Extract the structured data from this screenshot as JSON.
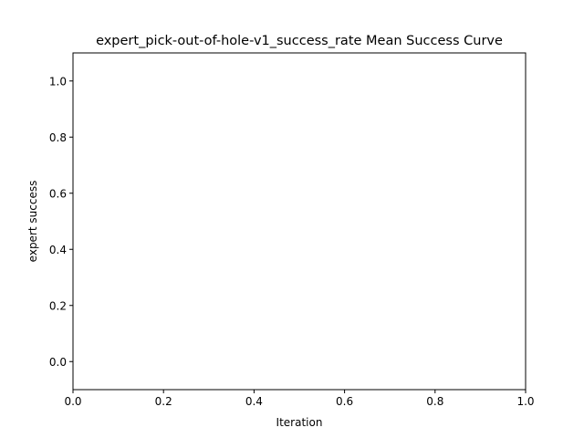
{
  "chart_data": {
    "type": "line",
    "title": "expert_pick-out-of-hole-v1_success_rate Mean Success Curve",
    "xlabel": "Iteration",
    "ylabel": "expert success",
    "xlim": [
      0.0,
      1.0
    ],
    "ylim": [
      -0.1,
      1.1
    ],
    "xticks": [
      "0.0",
      "0.2",
      "0.4",
      "0.6",
      "0.8",
      "1.0"
    ],
    "yticks": [
      "0.0",
      "0.2",
      "0.4",
      "0.6",
      "0.8",
      "1.0"
    ],
    "grid": false,
    "series": []
  }
}
